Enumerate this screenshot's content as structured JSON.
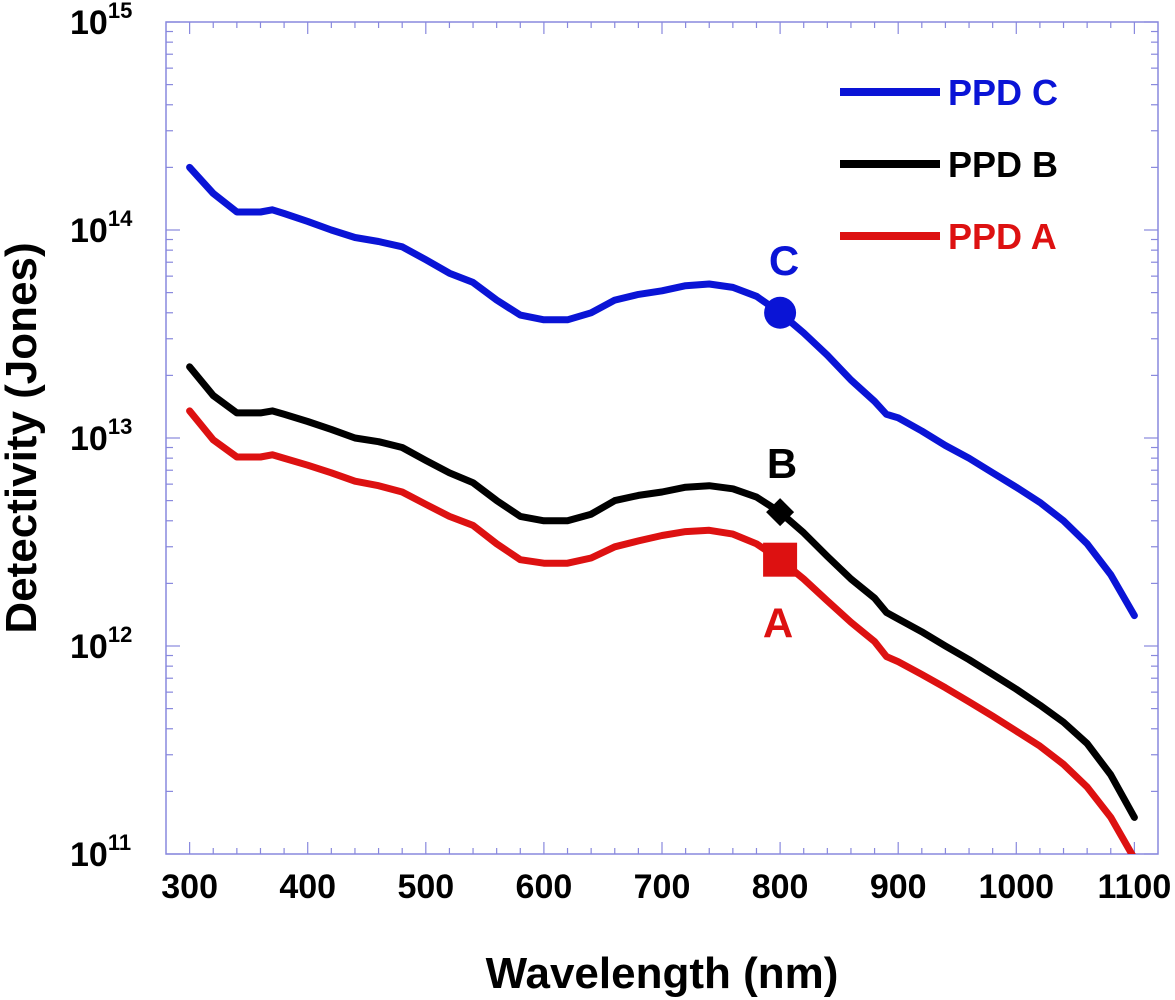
{
  "chart_data": {
    "type": "line",
    "title": "",
    "xlabel": "Wavelength (nm)",
    "ylabel": "Detectivity (Jones)",
    "xlim": [
      280,
      1120
    ],
    "ylim_exp": [
      11,
      15
    ],
    "yscale": "log",
    "x_ticks": [
      "300",
      "400",
      "500",
      "600",
      "700",
      "800",
      "900",
      "1000",
      "1100"
    ],
    "y_ticks": [
      {
        "base": "10",
        "exp": "11"
      },
      {
        "base": "10",
        "exp": "12"
      },
      {
        "base": "10",
        "exp": "13"
      },
      {
        "base": "10",
        "exp": "14"
      },
      {
        "base": "10",
        "exp": "15"
      }
    ],
    "axis_color": "#8888dd",
    "series": [
      {
        "name": "PPD C",
        "color": "#0a14d6",
        "marker": "circle",
        "marker_label": "C",
        "marker_point": [
          800,
          40000000000000.0
        ],
        "x": [
          300,
          320,
          340,
          360,
          370,
          380,
          400,
          420,
          440,
          460,
          480,
          500,
          520,
          540,
          560,
          580,
          600,
          620,
          640,
          660,
          680,
          700,
          720,
          740,
          760,
          780,
          800,
          820,
          840,
          860,
          880,
          890,
          900,
          920,
          940,
          960,
          980,
          1000,
          1020,
          1040,
          1060,
          1080,
          1100
        ],
        "values": [
          200000000000000.0,
          150000000000000.0,
          122000000000000.0,
          122000000000000.0,
          125000000000000.0,
          120000000000000.0,
          110000000000000.0,
          100000000000000.0,
          92000000000000.0,
          88000000000000.0,
          83000000000000.0,
          72000000000000.0,
          62000000000000.0,
          56000000000000.0,
          46000000000000.0,
          39000000000000.0,
          37000000000000.0,
          37000000000000.0,
          40000000000000.0,
          46000000000000.0,
          49000000000000.0,
          51000000000000.0,
          54000000000000.0,
          55000000000000.0,
          53000000000000.0,
          48000000000000.0,
          40000000000000.0,
          32000000000000.0,
          25000000000000.0,
          19000000000000.0,
          15000000000000.0,
          13000000000000.0,
          12500000000000.0,
          10800000000000.0,
          9200000000000.0,
          8000000000000.0,
          6800000000000.0,
          5800000000000.0,
          4900000000000.0,
          4000000000000.0,
          3100000000000.0,
          2200000000000.0,
          1400000000000.0
        ]
      },
      {
        "name": "PPD B",
        "color": "#000000",
        "marker": "diamond",
        "marker_label": "B",
        "marker_point": [
          800,
          4400000000000.0
        ],
        "x": [
          300,
          320,
          340,
          360,
          370,
          380,
          400,
          420,
          440,
          460,
          480,
          500,
          520,
          540,
          560,
          580,
          600,
          620,
          640,
          660,
          680,
          700,
          720,
          740,
          760,
          780,
          800,
          820,
          840,
          860,
          880,
          890,
          900,
          920,
          940,
          960,
          980,
          1000,
          1020,
          1040,
          1060,
          1080,
          1100
        ],
        "values": [
          22000000000000.0,
          16000000000000.0,
          13200000000000.0,
          13200000000000.0,
          13500000000000.0,
          13000000000000.0,
          12000000000000.0,
          11000000000000.0,
          10000000000000.0,
          9600000000000.0,
          9000000000000.0,
          7800000000000.0,
          6800000000000.0,
          6100000000000.0,
          5000000000000.0,
          4200000000000.0,
          4000000000000.0,
          4000000000000.0,
          4300000000000.0,
          5000000000000.0,
          5300000000000.0,
          5500000000000.0,
          5800000000000.0,
          5900000000000.0,
          5700000000000.0,
          5200000000000.0,
          4400000000000.0,
          3500000000000.0,
          2700000000000.0,
          2100000000000.0,
          1700000000000.0,
          1450000000000.0,
          1350000000000.0,
          1170000000000.0,
          1000000000000.0,
          860000000000.0,
          730000000000.0,
          620000000000.0,
          520000000000.0,
          430000000000.0,
          340000000000.0,
          240000000000.0,
          150000000000.0
        ]
      },
      {
        "name": "PPD A",
        "color": "#dd1111",
        "marker": "square",
        "marker_label": "A",
        "marker_point": [
          800,
          2600000000000.0
        ],
        "x": [
          300,
          320,
          340,
          360,
          370,
          380,
          400,
          420,
          440,
          460,
          480,
          500,
          520,
          540,
          560,
          580,
          600,
          620,
          640,
          660,
          680,
          700,
          720,
          740,
          760,
          780,
          800,
          820,
          840,
          860,
          880,
          890,
          900,
          920,
          940,
          960,
          980,
          1000,
          1020,
          1040,
          1060,
          1080,
          1100
        ],
        "values": [
          13500000000000.0,
          9800000000000.0,
          8100000000000.0,
          8100000000000.0,
          8300000000000.0,
          8000000000000.0,
          7400000000000.0,
          6800000000000.0,
          6200000000000.0,
          5900000000000.0,
          5500000000000.0,
          4800000000000.0,
          4200000000000.0,
          3800000000000.0,
          3100000000000.0,
          2600000000000.0,
          2500000000000.0,
          2500000000000.0,
          2650000000000.0,
          3000000000000.0,
          3200000000000.0,
          3400000000000.0,
          3550000000000.0,
          3600000000000.0,
          3450000000000.0,
          3100000000000.0,
          2600000000000.0,
          2100000000000.0,
          1650000000000.0,
          1300000000000.0,
          1050000000000.0,
          890000000000.0,
          840000000000.0,
          730000000000.0,
          630000000000.0,
          540000000000.0,
          460000000000.0,
          390000000000.0,
          330000000000.0,
          270000000000.0,
          210000000000.0,
          150000000000.0,
          95000000000.0
        ]
      }
    ],
    "legend_order": [
      "PPD C",
      "PPD B",
      "PPD A"
    ],
    "legend_position": "top-right"
  }
}
